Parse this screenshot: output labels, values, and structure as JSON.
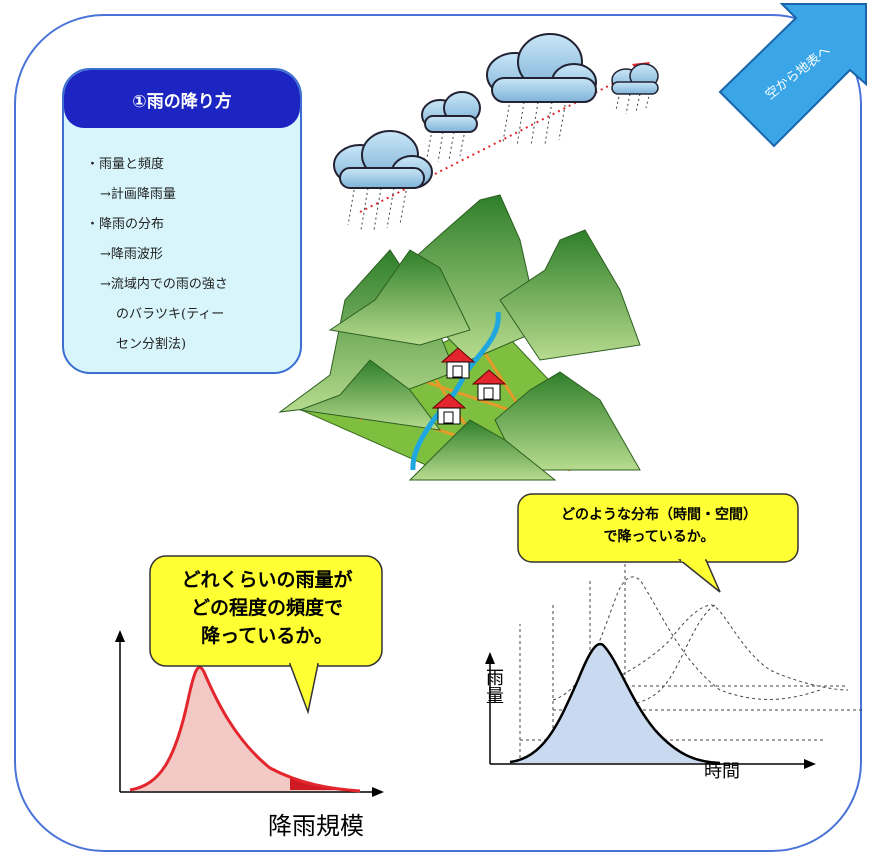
{
  "panel": {
    "title": "①雨の降り方",
    "bullets": [
      {
        "text": "・雨量と頻度",
        "indent": 0
      },
      {
        "text": "→計画降雨量",
        "indent": 1
      },
      {
        "text": "・降雨の分布",
        "indent": 0
      },
      {
        "text": "→降雨波形",
        "indent": 1
      },
      {
        "text": "→流域内での雨の強さ",
        "indent": 1
      },
      {
        "text": "のバラツキ(ティー",
        "indent": 2
      },
      {
        "text": "セン分割法)",
        "indent": 2
      }
    ]
  },
  "arrow": {
    "label": "空から地表へ"
  },
  "bubble_frequency": {
    "lines": [
      "どれくらいの雨量が",
      "どの程度の頻度で",
      "降っているか。"
    ]
  },
  "bubble_distribution": {
    "lines": [
      "どのような分布（時間・空間）",
      "で降っているか。"
    ]
  },
  "chart_left": {
    "xlabel": "降雨規模"
  },
  "chart_right": {
    "ylabel": "雨量",
    "xlabel": "時間"
  },
  "colors": {
    "frame": "#4a73d9",
    "title_bar": "#1c24c2",
    "panel_bg": "#d7f5fb",
    "bubble": "#ffff33",
    "arrow": "#3aa6e8",
    "curve_red": "#e3262e",
    "river": "#1fa7e0",
    "mountain": "#3f8f2f"
  }
}
